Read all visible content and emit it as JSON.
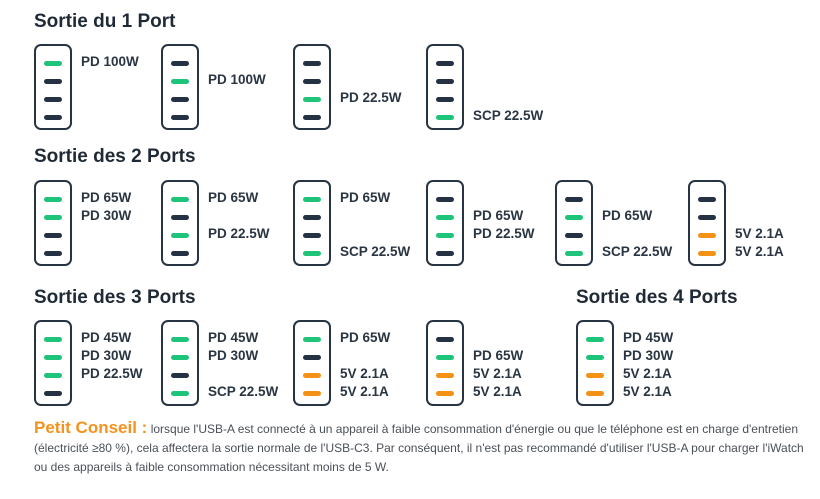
{
  "colors": {
    "green": "#1ec47a",
    "navy": "#243244",
    "orange": "#f39214"
  },
  "sections": [
    {
      "title": "Sortie du 1 Port",
      "devices": [
        {
          "ports": [
            "green",
            "navy",
            "navy",
            "navy"
          ],
          "labels": [
            "PD 100W"
          ]
        },
        {
          "ports": [
            "navy",
            "green",
            "navy",
            "navy"
          ],
          "labels": [
            "PD 100W"
          ]
        },
        {
          "ports": [
            "navy",
            "navy",
            "green",
            "navy"
          ],
          "labels": [
            "PD 22.5W"
          ]
        },
        {
          "ports": [
            "navy",
            "navy",
            "navy",
            "green"
          ],
          "labels": [
            "SCP 22.5W"
          ]
        }
      ]
    },
    {
      "title": "Sortie des 2 Ports",
      "devices": [
        {
          "ports": [
            "green",
            "green",
            "navy",
            "navy"
          ],
          "labels": [
            "PD 65W",
            "PD 30W"
          ]
        },
        {
          "ports": [
            "green",
            "navy",
            "green",
            "navy"
          ],
          "labels": [
            "PD 65W",
            "PD 22.5W"
          ]
        },
        {
          "ports": [
            "green",
            "navy",
            "navy",
            "green"
          ],
          "labels": [
            "PD 65W",
            "SCP 22.5W"
          ]
        },
        {
          "ports": [
            "navy",
            "green",
            "green",
            "navy"
          ],
          "labels": [
            "PD 65W",
            "PD 22.5W"
          ]
        },
        {
          "ports": [
            "navy",
            "green",
            "navy",
            "green"
          ],
          "labels": [
            "PD 65W",
            "SCP 22.5W"
          ]
        },
        {
          "ports": [
            "navy",
            "navy",
            "orange",
            "orange"
          ],
          "labels": [
            "5V 2.1A",
            "5V 2.1A"
          ]
        }
      ]
    },
    {
      "title": "Sortie des 3 Ports",
      "devices": [
        {
          "ports": [
            "green",
            "green",
            "green",
            "navy"
          ],
          "labels": [
            "PD 45W",
            "PD 30W",
            "PD 22.5W"
          ]
        },
        {
          "ports": [
            "green",
            "green",
            "navy",
            "green"
          ],
          "labels": [
            "PD 45W",
            "PD 30W",
            "SCP 22.5W"
          ]
        },
        {
          "ports": [
            "green",
            "navy",
            "orange",
            "orange"
          ],
          "labels": [
            "PD 65W",
            "5V 2.1A",
            "5V 2.1A"
          ]
        },
        {
          "ports": [
            "navy",
            "green",
            "orange",
            "orange"
          ],
          "labels": [
            "PD 65W",
            "5V 2.1A",
            "5V 2.1A"
          ]
        }
      ]
    },
    {
      "title": "Sortie des 4 Ports",
      "devices": [
        {
          "ports": [
            "green",
            "green",
            "orange",
            "orange"
          ],
          "labels": [
            "PD 45W",
            "PD 30W",
            "5V 2.1A",
            "5V 2.1A"
          ]
        }
      ]
    }
  ],
  "tip": {
    "title": "Petit Conseil :",
    "text": "lorsque l'USB-A est connecté à un appareil à faible consommation d'énergie ou que le téléphone est en charge d'entretien (électricité ≥80 %), cela affectera la sortie normale de l'USB-C3. Par conséquent, il n'est pas recommandé d'utiliser l'USB-A pour charger l'iWatch ou des appareils à faible consommation nécessitant moins de 5 W."
  }
}
